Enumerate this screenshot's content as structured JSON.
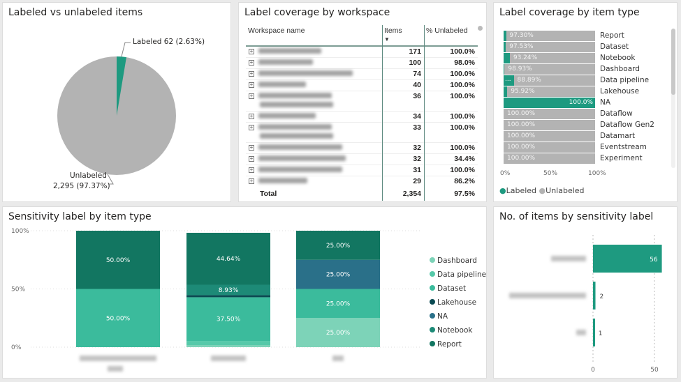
{
  "pie": {
    "title": "Labeled vs unlabeled items",
    "labeled_label": "Labeled 62 (2.63%)",
    "unlabeled_label": "Unlabeled",
    "unlabeled_value": "2,295 (97.37%)",
    "labeled_pct": 2.63,
    "colors": {
      "labeled": "#1e9a80",
      "unlabeled": "#b3b3b3"
    }
  },
  "workspace": {
    "title": "Label coverage by workspace",
    "headers": [
      "Workspace name",
      "Items",
      "% Unlabeled"
    ],
    "rows": [
      {
        "items": "171",
        "pct": "100.0%",
        "w": 90,
        "lines": 1
      },
      {
        "items": "100",
        "pct": "98.0%",
        "w": 78,
        "lines": 1
      },
      {
        "items": "74",
        "pct": "100.0%",
        "w": 135,
        "lines": 1
      },
      {
        "items": "40",
        "pct": "100.0%",
        "w": 68,
        "lines": 1
      },
      {
        "items": "36",
        "pct": "100.0%",
        "w": 105,
        "lines": 2
      },
      {
        "items": "34",
        "pct": "100.0%",
        "w": 82,
        "lines": 1
      },
      {
        "items": "33",
        "pct": "100.0%",
        "w": 105,
        "lines": 2
      },
      {
        "items": "32",
        "pct": "100.0%",
        "w": 120,
        "lines": 1
      },
      {
        "items": "32",
        "pct": "34.4%",
        "w": 125,
        "lines": 1
      },
      {
        "items": "31",
        "pct": "100.0%",
        "w": 120,
        "lines": 1
      },
      {
        "items": "29",
        "pct": "86.2%",
        "w": 70,
        "lines": 1
      }
    ],
    "total_label": "Total",
    "total_items": "2,354",
    "total_pct": "97.5%"
  },
  "itemtype": {
    "title": "Label coverage by item type",
    "rows": [
      {
        "name": "Report",
        "unl": 97.3,
        "label": "97.30%"
      },
      {
        "name": "Dataset",
        "unl": 97.53,
        "label": "97.53%"
      },
      {
        "name": "Notebook",
        "unl": 93.24,
        "label": "93.24%"
      },
      {
        "name": "Dashboard",
        "unl": 98.93,
        "label": "98.93%"
      },
      {
        "name": "Data pipeline",
        "unl": 88.89,
        "label": "88.89%",
        "lab_label": "..."
      },
      {
        "name": "Lakehouse",
        "unl": 95.92,
        "label": "95.92%"
      },
      {
        "name": "NA",
        "unl": 0,
        "label": "100.0%"
      },
      {
        "name": "Dataflow",
        "unl": 100,
        "label": "100.00%"
      },
      {
        "name": "Dataflow Gen2",
        "unl": 100,
        "label": "100.00%"
      },
      {
        "name": "Datamart",
        "unl": 100,
        "label": "100.00%"
      },
      {
        "name": "Eventstream",
        "unl": 100,
        "label": "100.00%"
      },
      {
        "name": "Experiment",
        "unl": 100,
        "label": "100.00%"
      }
    ],
    "ticks": [
      "0%",
      "50%",
      "100%"
    ],
    "legend": [
      "Labeled",
      "Unlabeled"
    ]
  },
  "chart_data": [
    {
      "type": "bar",
      "title": "Sensitivity label by item type",
      "stacked": true,
      "ylim": [
        0,
        100
      ],
      "yticks": [
        "0%",
        "50%",
        "100%"
      ],
      "series_names": [
        "Dashboard",
        "Data pipeline",
        "Dataset",
        "Lakehouse",
        "NA",
        "Notebook",
        "Report"
      ],
      "colors": [
        "#7dd3b8",
        "#56c9a9",
        "#3bbb9c",
        "#0b4a52",
        "#2a7089",
        "#1d8a77",
        "#127661"
      ],
      "columns": [
        {
          "values": [
            0,
            0,
            50,
            0,
            0,
            0,
            50
          ],
          "labels": [
            "",
            "",
            "50.00%",
            "",
            "",
            "",
            "50.00%"
          ]
        },
        {
          "values": [
            1.79,
            3.57,
            37.5,
            1.79,
            0,
            8.93,
            44.64
          ],
          "labels": [
            "",
            "",
            "37.50%",
            "",
            "",
            "8.93%",
            "44.64%"
          ]
        },
        {
          "values": [
            25,
            0,
            25,
            0,
            25,
            0,
            25
          ],
          "labels": [
            "25.00%",
            "",
            "25.00%",
            "",
            "25.00%",
            "",
            "25.00%"
          ]
        }
      ]
    },
    {
      "type": "bar",
      "orientation": "horizontal",
      "title": "No. of items by sensitivity label",
      "values": [
        56,
        2,
        1
      ],
      "labels": [
        "56",
        "2",
        "1"
      ],
      "xticks": [
        "0",
        "50"
      ],
      "xlim": [
        0,
        56
      ],
      "color": "#1e9a80"
    }
  ]
}
